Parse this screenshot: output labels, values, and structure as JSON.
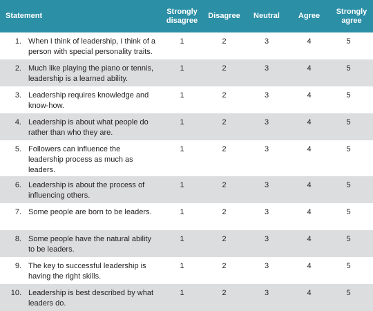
{
  "table": {
    "headers": {
      "statement": "Statement",
      "strongly_disagree": "Strongly disagree",
      "disagree": "Disagree",
      "neutral": "Neutral",
      "agree": "Agree",
      "strongly_agree": "Strongly agree"
    },
    "rows": [
      {
        "num": "1.",
        "text": "When I think of leadership, I think of a person with special personality traits.",
        "v1": "1",
        "v2": "2",
        "v3": "3",
        "v4": "4",
        "v5": "5"
      },
      {
        "num": "2.",
        "text": "Much like playing the piano or tennis, leadership is a learned ability.",
        "v1": "1",
        "v2": "2",
        "v3": "3",
        "v4": "4",
        "v5": "5"
      },
      {
        "num": "3.",
        "text": "Leadership requires knowledge and know-how.",
        "v1": "1",
        "v2": "2",
        "v3": "3",
        "v4": "4",
        "v5": "5"
      },
      {
        "num": "4.",
        "text": "Leadership is about what people do rather than who they are.",
        "v1": "1",
        "v2": "2",
        "v3": "3",
        "v4": "4",
        "v5": "5"
      },
      {
        "num": "5.",
        "text": "Followers can influence the leadership process as much as leaders.",
        "v1": "1",
        "v2": "2",
        "v3": "3",
        "v4": "4",
        "v5": "5"
      },
      {
        "num": "6.",
        "text": "Leadership is about the process of influencing others.",
        "v1": "1",
        "v2": "2",
        "v3": "3",
        "v4": "4",
        "v5": "5"
      },
      {
        "num": "7.",
        "text": "Some people are born to be leaders.",
        "v1": "1",
        "v2": "2",
        "v3": "3",
        "v4": "4",
        "v5": "5"
      },
      {
        "num": "8.",
        "text": "Some people have the natural ability to be leaders.",
        "v1": "1",
        "v2": "2",
        "v3": "3",
        "v4": "4",
        "v5": "5"
      },
      {
        "num": "9.",
        "text": "The key to successful leadership is having the right skills.",
        "v1": "1",
        "v2": "2",
        "v3": "3",
        "v4": "4",
        "v5": "5"
      },
      {
        "num": "10.",
        "text": "Leadership is best described by what leaders do.",
        "v1": "1",
        "v2": "2",
        "v3": "3",
        "v4": "4",
        "v5": "5"
      }
    ]
  }
}
